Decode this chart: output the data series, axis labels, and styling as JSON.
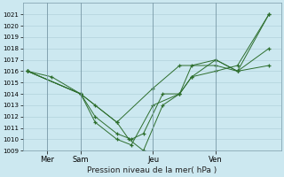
{
  "title": "Pression niveau de la mer( hPa )",
  "background_color": "#cce8f0",
  "plot_bg_color": "#cce8f0",
  "grid_color": "#aaccd6",
  "line_color": "#2d6e2d",
  "marker_color": "#2d6e2d",
  "ylim": [
    1009,
    1022
  ],
  "yticks": [
    1009,
    1010,
    1011,
    1012,
    1013,
    1014,
    1015,
    1016,
    1017,
    1018,
    1019,
    1020,
    1021
  ],
  "xtick_positions": [
    0.08,
    0.22,
    0.52,
    0.78
  ],
  "xtick_labels": [
    "Mer",
    "Sam",
    "Jeu",
    "Ven"
  ],
  "vline_positions": [
    0.08,
    0.22,
    0.52,
    0.78
  ],
  "series": [
    {
      "x": [
        0.0,
        0.1,
        0.22,
        0.28,
        0.37,
        0.42,
        0.48,
        0.56,
        0.63,
        0.68,
        0.78,
        0.87,
        1.0
      ],
      "y": [
        1016,
        1015.5,
        1014,
        1013,
        1011.5,
        1010,
        1009,
        1013,
        1014,
        1015.5,
        1016,
        1016.5,
        1021
      ]
    },
    {
      "x": [
        0.0,
        0.22,
        0.37,
        0.52,
        0.63,
        0.78,
        0.87,
        1.0
      ],
      "y": [
        1016,
        1014,
        1011.5,
        1014.5,
        1016.5,
        1016.5,
        1016,
        1021
      ]
    },
    {
      "x": [
        0.0,
        0.22,
        0.28,
        0.37,
        0.43,
        0.48,
        0.56,
        0.63,
        0.68,
        0.78,
        0.87,
        1.0
      ],
      "y": [
        1016,
        1014,
        1012,
        1010.5,
        1010,
        1010.5,
        1014,
        1014,
        1015.5,
        1017,
        1016,
        1016.5
      ]
    },
    {
      "x": [
        0.0,
        0.22,
        0.28,
        0.37,
        0.43,
        0.52,
        0.63,
        0.68,
        0.78,
        0.87,
        1.0
      ],
      "y": [
        1016,
        1014,
        1011.5,
        1010,
        1009.5,
        1013,
        1014,
        1016.5,
        1017,
        1016,
        1018
      ]
    }
  ]
}
